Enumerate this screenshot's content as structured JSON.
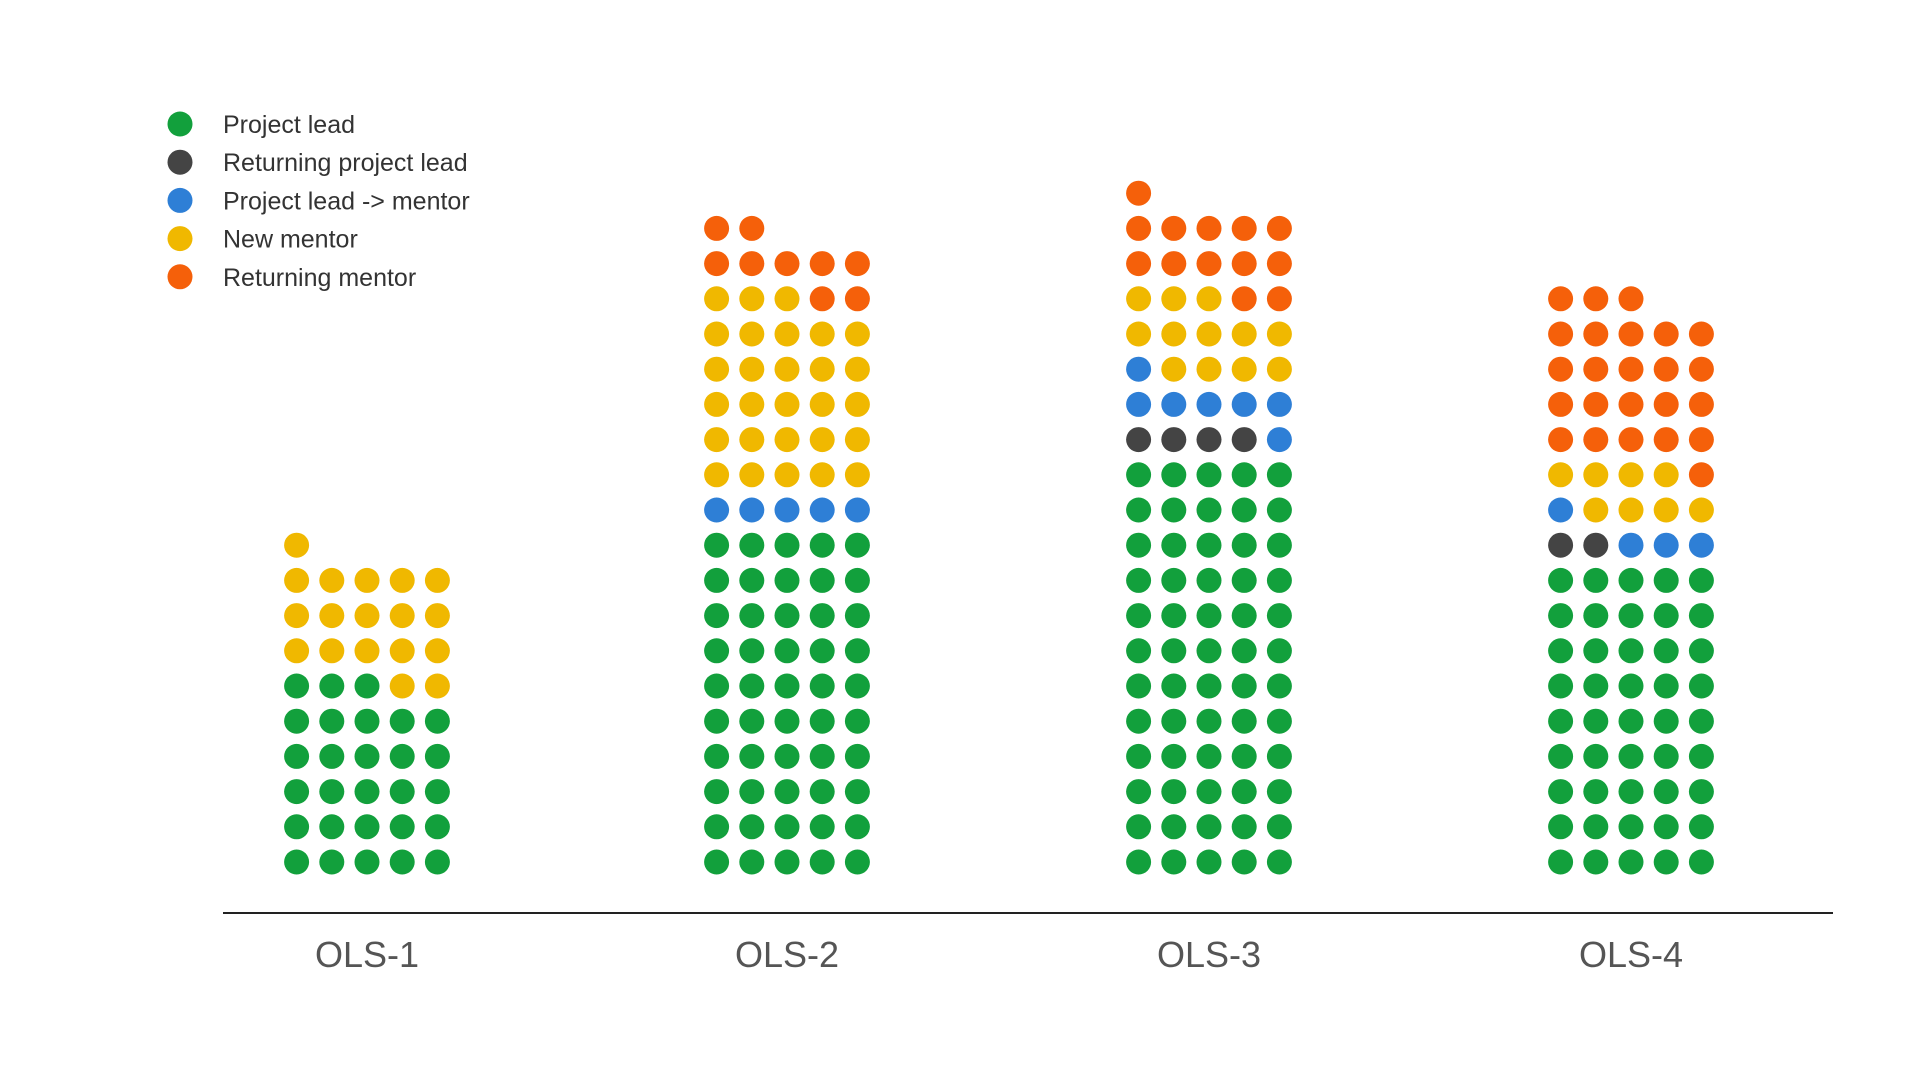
{
  "chart_data": {
    "type": "waffle-bar",
    "title": "",
    "xlabel": "",
    "ylabel": "",
    "categories": [
      "OLS-1",
      "OLS-2",
      "OLS-3",
      "OLS-4"
    ],
    "series": [
      {
        "name": "Project lead",
        "color": "#12a03c",
        "values": [
          28,
          50,
          60,
          45
        ]
      },
      {
        "name": "Returning project lead",
        "color": "#444444",
        "values": [
          0,
          0,
          4,
          2
        ]
      },
      {
        "name": "Project lead -> mentor",
        "color": "#2e7fd6",
        "values": [
          0,
          5,
          7,
          4
        ]
      },
      {
        "name": "New mentor",
        "color": "#f0b800",
        "values": [
          18,
          28,
          12,
          8
        ]
      },
      {
        "name": "Returning mentor",
        "color": "#f5600a",
        "values": [
          0,
          9,
          13,
          24
        ]
      }
    ],
    "grid": false,
    "legend_position": "top-left"
  }
}
